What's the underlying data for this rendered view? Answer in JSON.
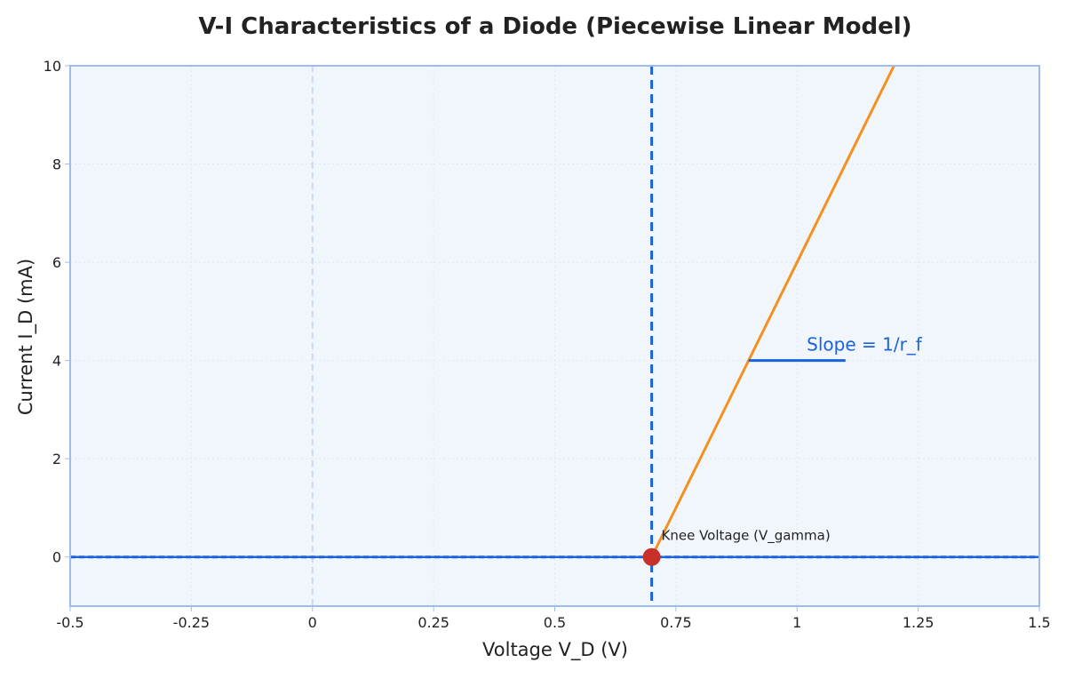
{
  "chart_data": {
    "type": "line",
    "title": "V-I Characteristics of a Diode (Piecewise Linear Model)",
    "xlabel": "Voltage V_D (V)",
    "ylabel": "Current I_D (mA)",
    "xlim": [
      -0.5,
      1.5
    ],
    "ylim": [
      -1,
      10
    ],
    "x_ticks": [
      -0.5,
      -0.25,
      0,
      0.25,
      0.5,
      0.75,
      1,
      1.25,
      1.5
    ],
    "x_tick_labels": [
      "-0.5",
      "-0.25",
      "0",
      "0.25",
      "0.5",
      "0.75",
      "1",
      "1.25",
      "1.5"
    ],
    "y_ticks": [
      0,
      2,
      4,
      6,
      8,
      10
    ],
    "y_tick_labels": [
      "0",
      "2",
      "4",
      "6",
      "8",
      "10"
    ],
    "grid": true,
    "series": [
      {
        "color": "#1a62e0",
        "style": "dashed",
        "points": [
          [
            -0.5,
            0
          ],
          [
            0.7,
            0
          ],
          [
            1.5,
            0
          ]
        ]
      },
      {
        "color": "#f5901e",
        "style": "solid",
        "points": [
          [
            0.7,
            0
          ],
          [
            1.2,
            10
          ]
        ]
      }
    ],
    "reference_lines": [
      {
        "orientation": "vertical",
        "x": 0,
        "color": "#c8d9f5",
        "style": "dashed"
      },
      {
        "orientation": "vertical",
        "x": 0.7,
        "color": "#1a62e0",
        "style": "dashed"
      },
      {
        "orientation": "horizontal",
        "y": 0,
        "color": "#1a62e0",
        "style": "solid"
      }
    ],
    "marker": {
      "x": 0.7,
      "y": 0,
      "color": "#c8302a"
    },
    "annotations": [
      {
        "text": "Knee Voltage (V_gamma)",
        "x": 0.72,
        "y": 0.35,
        "color": "#222222"
      },
      {
        "text": "Slope = 1/r_f",
        "x": 1.02,
        "y": 4.2,
        "color": "#1a62e0"
      }
    ],
    "slope_segment": {
      "x": [
        0.9,
        1.1
      ],
      "y": 4,
      "color": "#1a62e0"
    },
    "colors": {
      "plot_background": "#f1f6fc",
      "frame": "#9dbcf0",
      "grid": "#dfe8f4",
      "text": "#222222"
    }
  }
}
